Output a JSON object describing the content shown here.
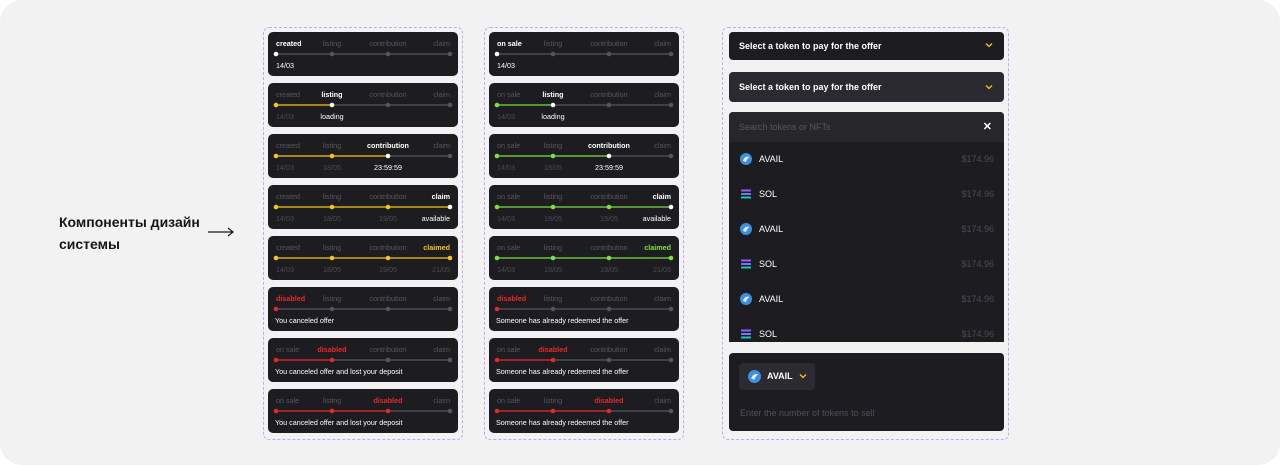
{
  "caption": "Компоненты дизайн системы",
  "colors": {
    "card_bg": "#1d1d21",
    "done_gold": "#f5c518",
    "done_green": "#7be042",
    "disabled_red": "#e5282c",
    "inactive": "#55555c",
    "frame": "#c8a6f5"
  },
  "columns": [
    {
      "accent": "gold",
      "cards": [
        {
          "state": "active-0",
          "labels": [
            "created",
            "listing",
            "contribution",
            "claim"
          ],
          "subs": [
            "14/03",
            "",
            "",
            ""
          ]
        },
        {
          "state": "active-1",
          "labels": [
            "created",
            "listing",
            "contribution",
            "claim"
          ],
          "subs": [
            "14/03",
            "loading",
            "",
            ""
          ]
        },
        {
          "state": "active-2",
          "labels": [
            "created",
            "listing",
            "contribution",
            "claim"
          ],
          "subs": [
            "14/03",
            "18/05",
            "23:59:59",
            ""
          ]
        },
        {
          "state": "active-3",
          "labels": [
            "created",
            "listing",
            "contribution",
            "claim"
          ],
          "subs": [
            "14/03",
            "18/05",
            "19/05",
            "available"
          ]
        },
        {
          "state": "completed",
          "labels": [
            "created",
            "listing",
            "contribution",
            "claimed"
          ],
          "subs": [
            "14/03",
            "18/05",
            "19/05",
            "21/05"
          ]
        },
        {
          "state": "disabled-0",
          "labels": [
            "disabled",
            "listing",
            "contribution",
            "claim"
          ],
          "message": "You canceled offer"
        },
        {
          "state": "disabled-1",
          "labels": [
            "on sale",
            "disabled",
            "contribution",
            "claim"
          ],
          "message": "You canceled offer and lost your deposit"
        },
        {
          "state": "disabled-2",
          "labels": [
            "on sale",
            "listing",
            "disabled",
            "claim"
          ],
          "message": "You canceled offer and lost your deposit"
        }
      ]
    },
    {
      "accent": "green",
      "cards": [
        {
          "state": "active-0",
          "labels": [
            "on sale",
            "listing",
            "contribution",
            "claim"
          ],
          "subs": [
            "14/03",
            "",
            "",
            ""
          ]
        },
        {
          "state": "active-1",
          "labels": [
            "on sale",
            "listing",
            "contribution",
            "claim"
          ],
          "subs": [
            "14/03",
            "loading",
            "",
            ""
          ]
        },
        {
          "state": "active-2",
          "labels": [
            "on sale",
            "listing",
            "contribution",
            "claim"
          ],
          "subs": [
            "14/03",
            "18/05",
            "23:59:59",
            ""
          ]
        },
        {
          "state": "active-3",
          "labels": [
            "on sale",
            "listing",
            "contribution",
            "claim"
          ],
          "subs": [
            "14/03",
            "18/05",
            "19/05",
            "available"
          ]
        },
        {
          "state": "completed",
          "labels": [
            "on sale",
            "listing",
            "contribution",
            "claimed"
          ],
          "subs": [
            "14/03",
            "18/05",
            "19/05",
            "21/05"
          ]
        },
        {
          "state": "disabled-0",
          "labels": [
            "disabled",
            "listing",
            "contribution",
            "claim"
          ],
          "message": "Someone has already redeemed the offer"
        },
        {
          "state": "disabled-1",
          "labels": [
            "on sale",
            "disabled",
            "contribution",
            "claim"
          ],
          "message": "Someone has already redeemed the offer"
        },
        {
          "state": "disabled-2",
          "labels": [
            "on sale",
            "listing",
            "disabled",
            "claim"
          ],
          "message": "Someone has already redeemed the offer"
        }
      ]
    }
  ],
  "token_select": {
    "label_closed": "Select a token to pay for the offer",
    "label_open": "Select a token to pay for the offer",
    "search_placeholder": "Search tokens or NFTs",
    "close_glyph": "✕",
    "tokens": [
      {
        "name": "AVAIL",
        "price": "$174.96",
        "icon": "avail-icon"
      },
      {
        "name": "SOL",
        "price": "$174.96",
        "icon": "sol-icon"
      },
      {
        "name": "AVAIL",
        "price": "$174.96",
        "icon": "avail-icon"
      },
      {
        "name": "SOL",
        "price": "$174.96",
        "icon": "sol-icon"
      },
      {
        "name": "AVAIL",
        "price": "$174.96",
        "icon": "avail-icon"
      },
      {
        "name": "SOL",
        "price": "$174.96",
        "icon": "sol-icon"
      }
    ]
  },
  "amount_input": {
    "token": "AVAIL",
    "placeholder": "Enter the number of tokens to sell"
  }
}
